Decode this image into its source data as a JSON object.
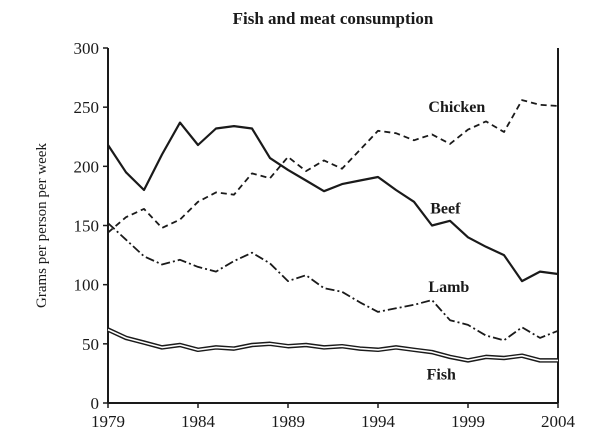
{
  "chart_data": {
    "type": "line",
    "title": "Fish and meat consumption",
    "xlabel": "",
    "ylabel": "Grams per person per week",
    "xlim": [
      1979,
      2004
    ],
    "ylim": [
      0,
      300
    ],
    "x_ticks": [
      1979,
      1984,
      1989,
      1994,
      1999,
      2004
    ],
    "y_ticks": [
      0,
      50,
      100,
      150,
      200,
      250,
      300
    ],
    "grid": false,
    "series": [
      {
        "name": "Beef",
        "style": "solid",
        "color": "#1a1a1a",
        "x": [
          1979,
          1980,
          1981,
          1982,
          1983,
          1984,
          1985,
          1986,
          1987,
          1988,
          1989,
          1990,
          1991,
          1992,
          1993,
          1994,
          1995,
          1996,
          1997,
          1998,
          1999,
          2000,
          2001,
          2002,
          2003,
          2004
        ],
        "values": [
          218,
          195,
          180,
          210,
          237,
          218,
          232,
          234,
          232,
          207,
          197,
          188,
          179,
          185,
          188,
          191,
          180,
          170,
          150,
          154,
          140,
          132,
          125,
          103,
          111,
          109
        ]
      },
      {
        "name": "Chicken",
        "style": "dashed",
        "color": "#1a1a1a",
        "x": [
          1979,
          1980,
          1981,
          1982,
          1983,
          1984,
          1985,
          1986,
          1987,
          1988,
          1989,
          1990,
          1991,
          1992,
          1993,
          1994,
          1995,
          1996,
          1997,
          1998,
          1999,
          2000,
          2001,
          2002,
          2003,
          2004
        ],
        "values": [
          144,
          157,
          164,
          148,
          155,
          170,
          178,
          176,
          194,
          190,
          208,
          196,
          205,
          198,
          214,
          230,
          228,
          222,
          227,
          219,
          231,
          238,
          229,
          256,
          252,
          251
        ]
      },
      {
        "name": "Lamb",
        "style": "dashdot",
        "color": "#1a1a1a",
        "x": [
          1979,
          1980,
          1981,
          1982,
          1983,
          1984,
          1985,
          1986,
          1987,
          1988,
          1989,
          1990,
          1991,
          1992,
          1993,
          1994,
          1995,
          1996,
          1997,
          1998,
          1999,
          2000,
          2001,
          2002,
          2003,
          2004
        ],
        "values": [
          152,
          138,
          124,
          117,
          121,
          115,
          111,
          120,
          127,
          118,
          103,
          108,
          97,
          94,
          85,
          77,
          80,
          83,
          87,
          70,
          66,
          57,
          53,
          64,
          55,
          61
        ]
      },
      {
        "name": "Fish",
        "style": "double",
        "color": "#1a1a1a",
        "x": [
          1979,
          1980,
          1981,
          1982,
          1983,
          1984,
          1985,
          1986,
          1987,
          1988,
          1989,
          1990,
          1991,
          1992,
          1993,
          1994,
          1995,
          1996,
          1997,
          1998,
          1999,
          2000,
          2001,
          2002,
          2003,
          2004
        ],
        "values": [
          62,
          55,
          51,
          47,
          49,
          45,
          47,
          46,
          49,
          50,
          48,
          49,
          47,
          48,
          46,
          45,
          47,
          45,
          43,
          39,
          36,
          39,
          38,
          40,
          36,
          36
        ]
      }
    ],
    "annotations": [
      {
        "text": "Chicken",
        "x": 1996.8,
        "y": 246
      },
      {
        "text": "Beef",
        "x": 1996.9,
        "y": 160
      },
      {
        "text": "Lamb",
        "x": 1996.8,
        "y": 94
      },
      {
        "text": "Fish",
        "x": 1996.7,
        "y": 20
      }
    ]
  }
}
